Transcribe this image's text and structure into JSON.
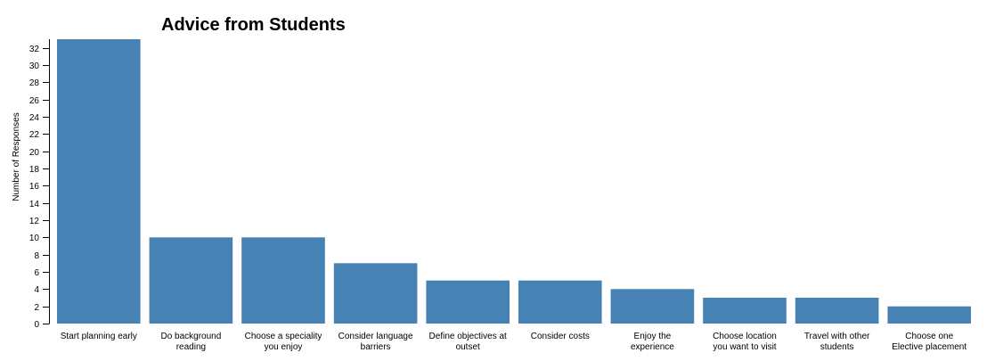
{
  "chart_data": {
    "type": "bar",
    "title": "Advice from Students",
    "xlabel": "",
    "ylabel": "Number of Responses",
    "ylim": [
      0,
      33
    ],
    "yticks": [
      0,
      2,
      4,
      6,
      8,
      10,
      12,
      14,
      16,
      18,
      20,
      22,
      24,
      26,
      28,
      30,
      32
    ],
    "grid": false,
    "bar_color": "#4682b4",
    "categories": [
      [
        "Start planning early"
      ],
      [
        "Do background",
        "reading"
      ],
      [
        "Choose a speciality",
        "you enjoy"
      ],
      [
        "Consider language",
        "barriers"
      ],
      [
        "Define objectives at",
        "outset"
      ],
      [
        "Consider costs"
      ],
      [
        "Enjoy the",
        "experience"
      ],
      [
        "Choose location",
        "you want to visit"
      ],
      [
        "Travel with other",
        "students"
      ],
      [
        "Choose one",
        "Elective placement"
      ]
    ],
    "values": [
      33,
      10,
      10,
      7,
      5,
      5,
      4,
      3,
      3,
      2
    ]
  }
}
